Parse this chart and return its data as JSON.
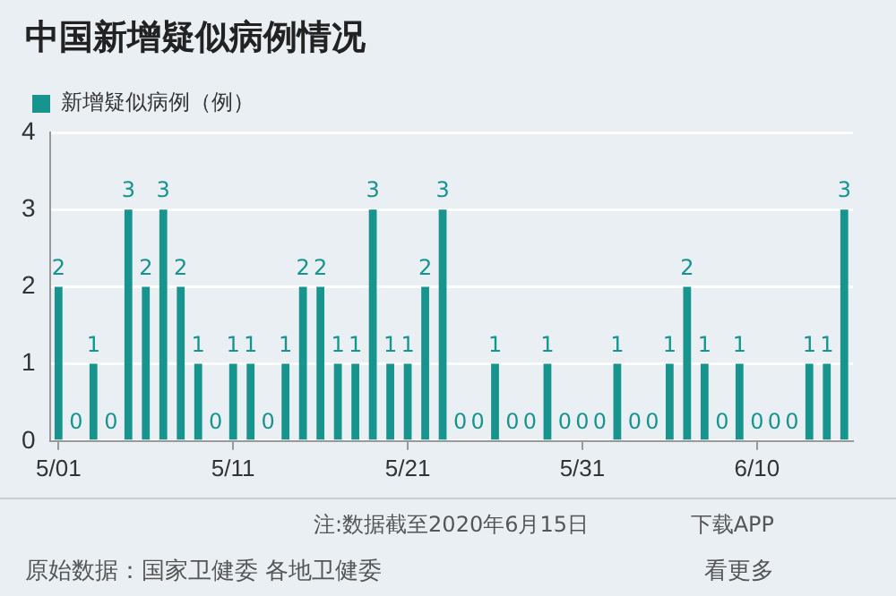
{
  "chart_data": {
    "type": "bar",
    "title": "中国新增疑似病例情况",
    "categories": [
      "5/01",
      null,
      null,
      null,
      null,
      null,
      null,
      null,
      null,
      null,
      "5/11",
      null,
      null,
      null,
      null,
      null,
      null,
      null,
      null,
      null,
      "5/21",
      null,
      null,
      null,
      null,
      null,
      null,
      null,
      null,
      null,
      "5/31",
      null,
      null,
      null,
      null,
      null,
      null,
      null,
      null,
      null,
      "6/10",
      null,
      null,
      null,
      null,
      null
    ],
    "series": [
      {
        "name": "新增疑似病例（例）",
        "color": "#17948e",
        "values": [
          2,
          0,
          1,
          0,
          3,
          2,
          3,
          2,
          1,
          0,
          1,
          1,
          0,
          1,
          2,
          2,
          1,
          1,
          3,
          1,
          1,
          2,
          3,
          0,
          0,
          1,
          0,
          0,
          1,
          0,
          0,
          0,
          1,
          0,
          0,
          1,
          2,
          1,
          0,
          1,
          0,
          0,
          0,
          1,
          1,
          3
        ]
      }
    ],
    "ylim": [
      0,
      4
    ],
    "yticks": [
      0,
      1,
      2,
      3,
      4
    ],
    "grid": "y",
    "legend": "top left",
    "data_labels": true,
    "annotations": [
      "注:数据截至2020年6月15日",
      "下载APP",
      "原始数据：国家卫健委 各地卫健委",
      "看更多"
    ]
  }
}
